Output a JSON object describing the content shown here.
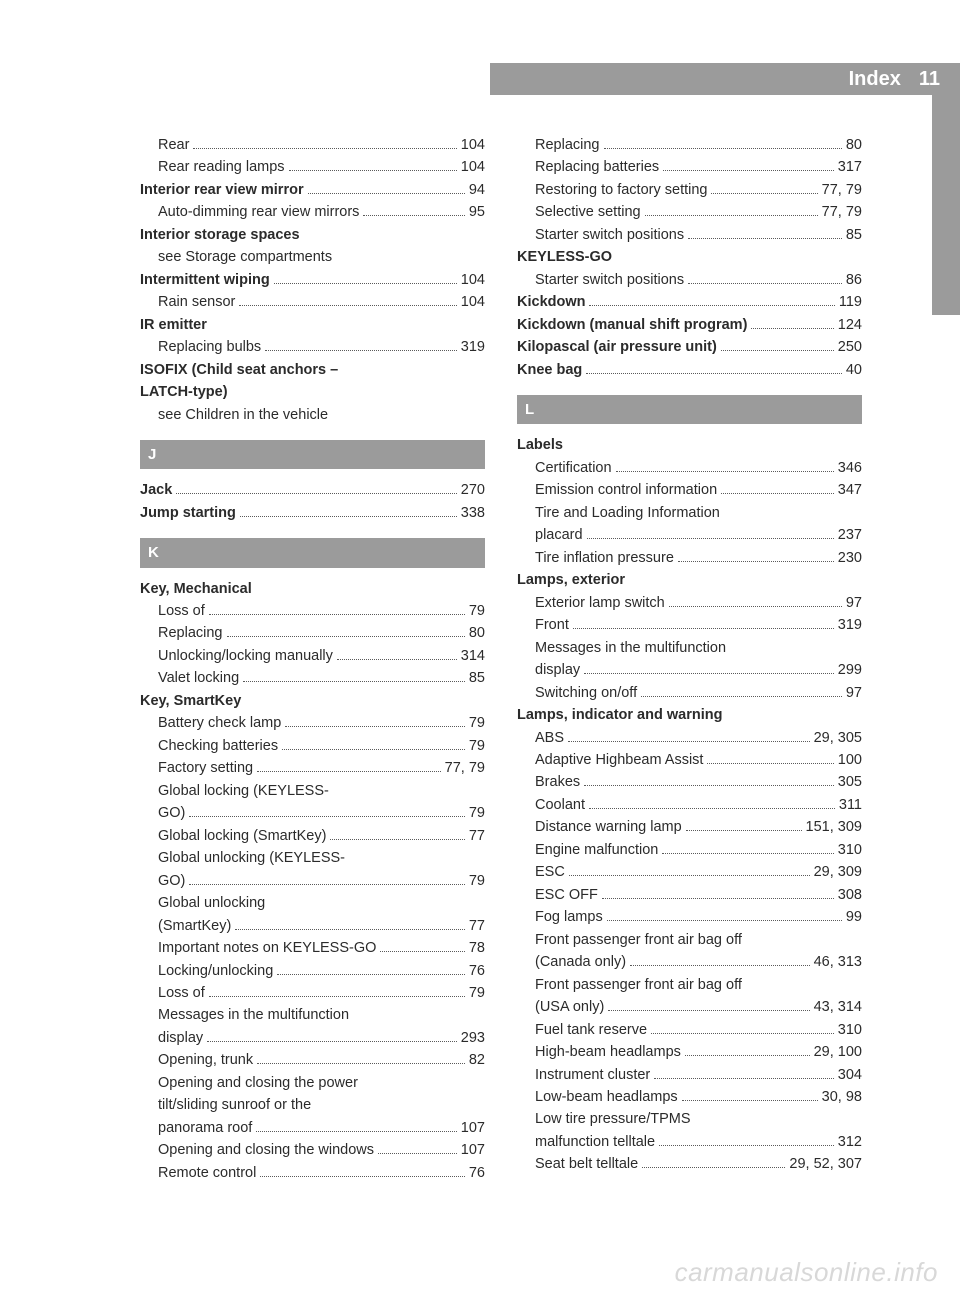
{
  "header": {
    "title": "Index",
    "pageno": "11"
  },
  "watermark": "carmanualsonline.info",
  "letters": {
    "J": "J",
    "K": "K",
    "L": "L"
  },
  "left": [
    {
      "t": "sub",
      "label": "Rear",
      "page": "104"
    },
    {
      "t": "sub",
      "label": "Rear reading lamps",
      "page": "104"
    },
    {
      "t": "top",
      "bold": true,
      "label": "Interior rear view mirror",
      "page": "94"
    },
    {
      "t": "sub",
      "label": "Auto-dimming rear view mirrors",
      "page": "95"
    },
    {
      "t": "head",
      "label": "Interior storage spaces"
    },
    {
      "t": "sub",
      "label": "see Storage compartments",
      "nopg": true
    },
    {
      "t": "top",
      "bold": true,
      "label": "Intermittent wiping",
      "page": "104"
    },
    {
      "t": "sub",
      "label": "Rain sensor",
      "page": "104"
    },
    {
      "t": "head",
      "label": "IR emitter"
    },
    {
      "t": "sub",
      "label": "Replacing bulbs",
      "page": "319"
    },
    {
      "t": "head",
      "label": "ISOFIX (Child seat anchors –"
    },
    {
      "t": "head",
      "label": "LATCH-type)"
    },
    {
      "t": "sub",
      "label": "see Children in the vehicle",
      "nopg": true
    },
    {
      "t": "letter",
      "key": "J"
    },
    {
      "t": "top",
      "bold": true,
      "label": "Jack",
      "page": "270"
    },
    {
      "t": "top",
      "bold": true,
      "label": "Jump starting",
      "page": "338"
    },
    {
      "t": "letter",
      "key": "K"
    },
    {
      "t": "head",
      "label": "Key, Mechanical"
    },
    {
      "t": "sub",
      "label": "Loss of",
      "page": "79"
    },
    {
      "t": "sub",
      "label": "Replacing",
      "page": "80"
    },
    {
      "t": "sub",
      "label": "Unlocking/locking manually",
      "page": "314"
    },
    {
      "t": "sub",
      "label": "Valet locking",
      "page": "85"
    },
    {
      "t": "head",
      "label": "Key, SmartKey"
    },
    {
      "t": "sub",
      "label": "Battery check lamp",
      "page": "79"
    },
    {
      "t": "sub",
      "label": "Checking batteries",
      "page": "79"
    },
    {
      "t": "sub",
      "label": "Factory setting",
      "page": "77, 79"
    },
    {
      "t": "sub",
      "label": "Global locking (KEYLESS-",
      "nopg": true,
      "noline": true
    },
    {
      "t": "sub",
      "label": "GO)",
      "page": "79"
    },
    {
      "t": "sub",
      "label": "Global locking (SmartKey)",
      "page": "77"
    },
    {
      "t": "sub",
      "label": "Global unlocking (KEYLESS-",
      "nopg": true,
      "noline": true
    },
    {
      "t": "sub",
      "label": "GO)",
      "page": "79"
    },
    {
      "t": "sub",
      "label": "Global unlocking",
      "nopg": true,
      "noline": true
    },
    {
      "t": "sub",
      "label": "(SmartKey)",
      "page": "77"
    },
    {
      "t": "sub",
      "label": "Important notes on KEYLESS-GO",
      "page": "78"
    },
    {
      "t": "sub",
      "label": "Locking/unlocking",
      "page": "76"
    },
    {
      "t": "sub",
      "label": "Loss of",
      "page": "79"
    },
    {
      "t": "sub",
      "label": "Messages in the multifunction",
      "nopg": true,
      "noline": true
    },
    {
      "t": "sub",
      "label": "display",
      "page": "293"
    },
    {
      "t": "sub",
      "label": "Opening, trunk",
      "page": "82"
    },
    {
      "t": "sub",
      "label": "Opening and closing the power",
      "nopg": true,
      "noline": true
    },
    {
      "t": "sub",
      "label": "tilt/sliding sunroof or the",
      "nopg": true,
      "noline": true
    },
    {
      "t": "sub",
      "label": "panorama roof",
      "page": "107"
    },
    {
      "t": "sub",
      "label": "Opening and closing the windows",
      "page": "107"
    },
    {
      "t": "sub",
      "label": "Remote control",
      "page": "76"
    }
  ],
  "right": [
    {
      "t": "sub",
      "label": "Replacing",
      "page": "80"
    },
    {
      "t": "sub",
      "label": "Replacing batteries",
      "page": "317"
    },
    {
      "t": "sub",
      "label": "Restoring to factory setting",
      "page": "77, 79"
    },
    {
      "t": "sub",
      "label": "Selective setting",
      "page": "77, 79"
    },
    {
      "t": "sub",
      "label": "Starter switch positions",
      "page": "85"
    },
    {
      "t": "head",
      "label": "KEYLESS-GO"
    },
    {
      "t": "sub",
      "label": "Starter switch positions",
      "page": "86"
    },
    {
      "t": "top",
      "bold": true,
      "label": "Kickdown",
      "page": "119"
    },
    {
      "t": "top",
      "bold": true,
      "label": "Kickdown (manual shift program)",
      "page": "124",
      "ell": true
    },
    {
      "t": "top",
      "bold": true,
      "label": "Kilopascal (air pressure unit)",
      "page": "250"
    },
    {
      "t": "top",
      "bold": true,
      "label": "Knee bag",
      "page": "40"
    },
    {
      "t": "letter",
      "key": "L"
    },
    {
      "t": "head",
      "label": "Labels"
    },
    {
      "t": "sub",
      "label": "Certification",
      "page": "346"
    },
    {
      "t": "sub",
      "label": "Emission control information",
      "page": "347"
    },
    {
      "t": "sub",
      "label": "Tire and Loading Information",
      "nopg": true,
      "noline": true
    },
    {
      "t": "sub",
      "label": "placard",
      "page": "237"
    },
    {
      "t": "sub",
      "label": "Tire inflation pressure",
      "page": "230"
    },
    {
      "t": "head",
      "label": "Lamps, exterior"
    },
    {
      "t": "sub",
      "label": "Exterior lamp switch",
      "page": "97"
    },
    {
      "t": "sub",
      "label": "Front",
      "page": "319"
    },
    {
      "t": "sub",
      "label": "Messages in the multifunction",
      "nopg": true,
      "noline": true
    },
    {
      "t": "sub",
      "label": "display",
      "page": "299"
    },
    {
      "t": "sub",
      "label": "Switching on/off",
      "page": "97"
    },
    {
      "t": "head",
      "label": "Lamps, indicator and warning"
    },
    {
      "t": "sub",
      "label": "ABS",
      "page": "29, 305"
    },
    {
      "t": "sub",
      "label": "Adaptive Highbeam Assist",
      "page": "100"
    },
    {
      "t": "sub",
      "label": "Brakes",
      "page": "305"
    },
    {
      "t": "sub",
      "label": "Coolant",
      "page": "311"
    },
    {
      "t": "sub",
      "label": "Distance warning lamp",
      "page": "151, 309"
    },
    {
      "t": "sub",
      "label": "Engine malfunction",
      "page": "310"
    },
    {
      "t": "sub",
      "label": "ESC",
      "page": "29, 309"
    },
    {
      "t": "sub",
      "label": "ESC OFF",
      "page": "308"
    },
    {
      "t": "sub",
      "label": "Fog lamps",
      "page": "99"
    },
    {
      "t": "sub",
      "label": "Front passenger front air bag off",
      "nopg": true,
      "noline": true
    },
    {
      "t": "sub",
      "label": "(Canada only)",
      "page": "46, 313"
    },
    {
      "t": "sub",
      "label": "Front passenger front air bag off",
      "nopg": true,
      "noline": true
    },
    {
      "t": "sub",
      "label": "(USA only)",
      "page": "43, 314"
    },
    {
      "t": "sub",
      "label": "Fuel tank reserve",
      "page": "310"
    },
    {
      "t": "sub",
      "label": "High-beam headlamps",
      "page": "29, 100"
    },
    {
      "t": "sub",
      "label": "Instrument cluster",
      "page": "304"
    },
    {
      "t": "sub",
      "label": "Low-beam headlamps",
      "page": "30, 98"
    },
    {
      "t": "sub",
      "label": "Low tire pressure/TPMS",
      "nopg": true,
      "noline": true
    },
    {
      "t": "sub",
      "label": "malfunction telltale",
      "page": "312"
    },
    {
      "t": "sub",
      "label": "Seat belt telltale",
      "page": "29, 52, 307"
    }
  ]
}
